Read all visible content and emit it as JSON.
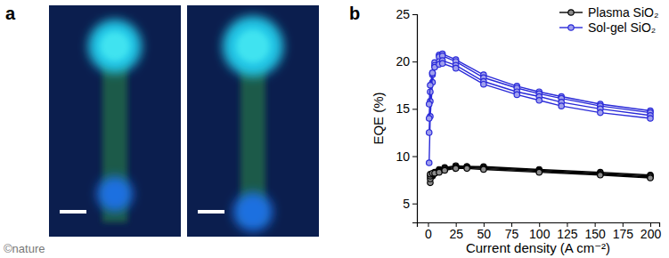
{
  "panel_labels": [
    "a",
    "b"
  ],
  "credit": "©nature",
  "chart_data": {
    "type": "line",
    "x_label": "Current density (A cm⁻²)",
    "y_label": "EQE (%)",
    "xlim": [
      -10,
      208
    ],
    "xticks": [
      0,
      25,
      50,
      75,
      100,
      125,
      150,
      175,
      200
    ],
    "ylim": [
      3,
      25
    ],
    "yticks": [
      5,
      10,
      15,
      20,
      25
    ],
    "grid": false,
    "legend": "top-right",
    "marker": "circle",
    "series": [
      {
        "name": "Plasma SiO₂",
        "color": "#000000",
        "x": [
          2,
          4,
          6,
          10,
          15,
          25,
          35,
          50,
          100,
          155,
          200
        ],
        "values": [
          [
            7.2,
            7.9,
            8.3,
            8.6,
            8.8,
            9.0,
            8.9,
            8.9,
            8.6,
            8.3,
            8.0
          ],
          [
            7.6,
            8.0,
            8.2,
            8.5,
            8.7,
            8.9,
            8.9,
            8.8,
            8.5,
            8.2,
            7.9
          ],
          [
            7.9,
            8.1,
            8.2,
            8.4,
            8.6,
            8.8,
            8.8,
            8.7,
            8.4,
            8.1,
            7.8
          ],
          [
            8.1,
            8.2,
            8.2,
            8.3,
            8.5,
            8.7,
            8.7,
            8.6,
            8.3,
            8.0,
            7.7
          ]
        ]
      },
      {
        "name": "Sol-gel SiO₂",
        "color": "#2a2ad8",
        "x": [
          1,
          2,
          4,
          6,
          10,
          13,
          25,
          50,
          80,
          100,
          120,
          155,
          200
        ],
        "values": [
          [
            9.3,
            14.2,
            17.8,
            19.5,
            20.7,
            20.8,
            20.2,
            18.6,
            17.4,
            16.8,
            16.3,
            15.5,
            14.8
          ],
          [
            12.5,
            15.8,
            18.6,
            19.9,
            20.5,
            20.6,
            20.0,
            18.3,
            17.2,
            16.6,
            16.1,
            15.3,
            14.6
          ],
          [
            14.0,
            16.8,
            18.8,
            19.6,
            20.0,
            20.1,
            19.6,
            17.9,
            16.8,
            16.3,
            15.7,
            15.0,
            14.3
          ],
          [
            15.5,
            17.5,
            18.8,
            19.4,
            19.7,
            19.8,
            19.3,
            17.6,
            16.5,
            15.9,
            15.3,
            14.6,
            14.0
          ]
        ]
      }
    ]
  }
}
